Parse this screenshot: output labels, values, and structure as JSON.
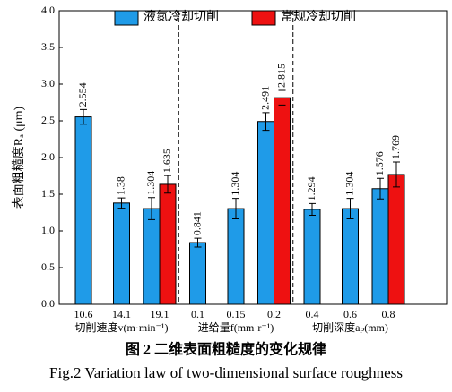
{
  "chart_data": {
    "type": "bar",
    "ylabel": "表面粗糙度Rₐ (μm)",
    "categories": [
      "10.6",
      "14.1",
      "19.1",
      "0.1",
      "0.15",
      "0.2",
      "0.4",
      "0.6",
      "0.8"
    ],
    "x_groups": [
      "切削速度v(m·min⁻¹)",
      "进给量f(mm·r⁻¹)",
      "切削深度aₚ(mm)"
    ],
    "series": [
      {
        "name": "液氮冷却切削",
        "color": "#1f9be8",
        "values": [
          2.554,
          1.38,
          1.304,
          0.841,
          1.304,
          2.491,
          1.294,
          1.304,
          1.576
        ],
        "errors": [
          0.1,
          0.07,
          0.15,
          0.06,
          0.14,
          0.12,
          0.08,
          0.14,
          0.14
        ]
      },
      {
        "name": "常规冷却切削",
        "color": "#ee1111",
        "values": [
          null,
          null,
          1.635,
          null,
          null,
          2.815,
          null,
          null,
          1.769
        ],
        "errors": [
          null,
          null,
          0.12,
          null,
          null,
          0.1,
          null,
          null,
          0.17
        ]
      }
    ],
    "ylim": [
      0,
      4
    ],
    "yticks": [
      {
        "value": 0,
        "label": "0.0"
      },
      {
        "value": 0.5,
        "label": "0.5"
      },
      {
        "value": 1,
        "label": "1.0"
      },
      {
        "value": 1.5,
        "label": "1.5"
      },
      {
        "value": 2,
        "label": "2.0"
      },
      {
        "value": 2.5,
        "label": "2.5"
      },
      {
        "value": 3,
        "label": "3.0"
      },
      {
        "value": 3.5,
        "label": "3.5"
      },
      {
        "value": 4,
        "label": "4.0"
      }
    ],
    "caption_cn": "图 2  二维表面粗糙度的变化规律",
    "caption_en": "Fig.2 Variation law of two-dimensional surface roughness"
  }
}
